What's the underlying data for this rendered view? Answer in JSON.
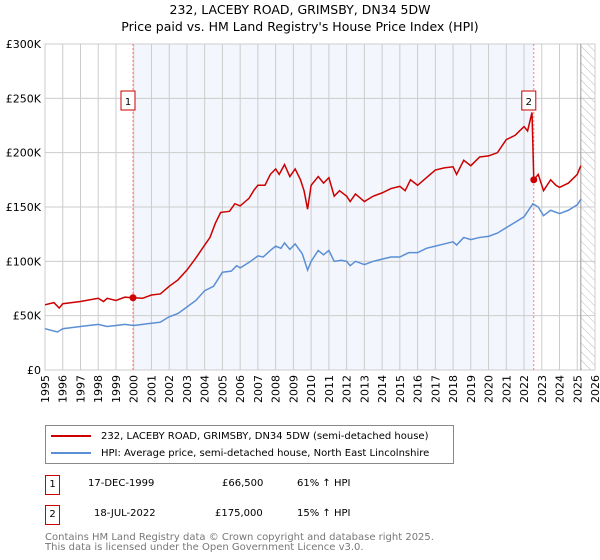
{
  "title": "232, LACEBY ROAD, GRIMSBY, DN34 5DW",
  "subtitle": "Price paid vs. HM Land Registry's House Price Index (HPI)",
  "chart_data": {
    "type": "line",
    "title": "232, LACEBY ROAD, GRIMSBY, DN34 5DW",
    "subtitle": "Price paid vs. HM Land Registry's House Price Index (HPI)",
    "xlim": [
      1995,
      2026
    ],
    "ylim": [
      0,
      300000
    ],
    "x_ticks": [
      "1995",
      "1996",
      "1997",
      "1998",
      "1999",
      "2000",
      "2001",
      "2002",
      "2003",
      "2004",
      "2005",
      "2006",
      "2007",
      "2008",
      "2009",
      "2010",
      "2011",
      "2012",
      "2013",
      "2014",
      "2015",
      "2016",
      "2017",
      "2018",
      "2019",
      "2020",
      "2021",
      "2022",
      "2023",
      "2024",
      "2025",
      "2026"
    ],
    "y_ticks": [
      {
        "v": 0,
        "label": "£0"
      },
      {
        "v": 50000,
        "label": "£50K"
      },
      {
        "v": 100000,
        "label": "£100K"
      },
      {
        "v": 150000,
        "label": "£150K"
      },
      {
        "v": 200000,
        "label": "£200K"
      },
      {
        "v": 250000,
        "label": "£250K"
      },
      {
        "v": 300000,
        "label": "£300K"
      }
    ],
    "grid": true,
    "shaded_range": [
      1999.96,
      2022.55
    ],
    "hatched_from": 2025.2,
    "series": [
      {
        "name": "232, LACEBY ROAD, GRIMSBY, DN34 5DW (semi-detached house)",
        "color": "#cc0000",
        "x": [
          1995,
          1995.5,
          1995.8,
          1996,
          1997,
          1998,
          1998.3,
          1998.5,
          1999,
          1999.5,
          1999.96,
          2000.5,
          2001,
          2001.5,
          2002,
          2002.5,
          2003,
          2003.5,
          2004,
          2004.3,
          2004.6,
          2004.9,
          2005.4,
          2005.7,
          2006,
          2006.5,
          2006.8,
          2007,
          2007.4,
          2007.7,
          2008,
          2008.2,
          2008.5,
          2008.8,
          2009.1,
          2009.4,
          2009.6,
          2009.8,
          2010,
          2010.4,
          2010.7,
          2011,
          2011.3,
          2011.6,
          2012,
          2012.2,
          2012.5,
          2013,
          2013.5,
          2014,
          2014.5,
          2015,
          2015.3,
          2015.6,
          2016,
          2016.5,
          2017,
          2017.5,
          2018,
          2018.2,
          2018.6,
          2019,
          2019.5,
          2020,
          2020.5,
          2021,
          2021.5,
          2022,
          2022.2,
          2022.45,
          2022.55,
          2022.8,
          2023.1,
          2023.5,
          2023.8,
          2024,
          2024.5,
          2025,
          2025.2
        ],
        "y": [
          60,
          62,
          57,
          61,
          63,
          66,
          63,
          66,
          64,
          67,
          66.5,
          66,
          69,
          70,
          77,
          83,
          92,
          103,
          115,
          122,
          135,
          145,
          146,
          153,
          151,
          158,
          166,
          170,
          170,
          180,
          185,
          180,
          189,
          178,
          185,
          175,
          165,
          148,
          170,
          178,
          172,
          177,
          160,
          165,
          160,
          155,
          162,
          155,
          160,
          163,
          167,
          169,
          165,
          175,
          170,
          177,
          184,
          186,
          187,
          180,
          193,
          188,
          196,
          197,
          200,
          212,
          216,
          224,
          220,
          237,
          175,
          180,
          165,
          175,
          170,
          168,
          172,
          180,
          188
        ]
      },
      {
        "name": "HPI: Average price, semi-detached house, North East Lincolnshire",
        "color": "#5b8fd4",
        "x": [
          1995,
          1995.7,
          1996,
          1997,
          1998,
          1998.5,
          1999,
          1999.5,
          2000,
          2001,
          2001.5,
          2002,
          2002.5,
          2003,
          2003.5,
          2004,
          2004.5,
          2005,
          2005.5,
          2005.8,
          2006,
          2006.5,
          2007,
          2007.3,
          2007.7,
          2008,
          2008.3,
          2008.5,
          2008.8,
          2009.1,
          2009.5,
          2009.8,
          2010,
          2010.4,
          2010.7,
          2011,
          2011.3,
          2011.7,
          2012,
          2012.2,
          2012.5,
          2013,
          2013.5,
          2014,
          2014.5,
          2015,
          2015.5,
          2016,
          2016.5,
          2017,
          2017.5,
          2018,
          2018.2,
          2018.6,
          2019,
          2019.5,
          2020,
          2020.5,
          2021,
          2021.5,
          2022,
          2022.5,
          2022.8,
          2023.1,
          2023.5,
          2024,
          2024.5,
          2025,
          2025.2
        ],
        "y": [
          38,
          35,
          38,
          40,
          42,
          40,
          41,
          42,
          41,
          43,
          44,
          49,
          52,
          58,
          64,
          73,
          77,
          90,
          91,
          96,
          94,
          99,
          105,
          104,
          110,
          114,
          112,
          117,
          111,
          116,
          107,
          92,
          100,
          110,
          106,
          110,
          100,
          101,
          100,
          96,
          100,
          97,
          100,
          102,
          104,
          104,
          108,
          108,
          112,
          114,
          116,
          118,
          115,
          122,
          120,
          122,
          123,
          126,
          131,
          136,
          141,
          153,
          150,
          142,
          147,
          144,
          147,
          152,
          157
        ]
      }
    ],
    "y_units": "thousands GBP",
    "sales": [
      {
        "id": "1",
        "x": 1999.96,
        "y": 66.5
      },
      {
        "id": "2",
        "x": 2022.55,
        "y": 175
      }
    ]
  },
  "legend": [
    "232, LACEBY ROAD, GRIMSBY, DN34 5DW (semi-detached house)",
    "HPI: Average price, semi-detached house, North East Lincolnshire"
  ],
  "transactions": [
    {
      "id": "1",
      "date": "17-DEC-1999",
      "price": "£66,500",
      "hpi": "61% ↑ HPI"
    },
    {
      "id": "2",
      "date": "18-JUL-2022",
      "price": "£175,000",
      "hpi": "15% ↑ HPI"
    }
  ],
  "footer": [
    "Contains HM Land Registry data © Crown copyright and database right 2025.",
    "This data is licensed under the Open Government Licence v3.0."
  ]
}
